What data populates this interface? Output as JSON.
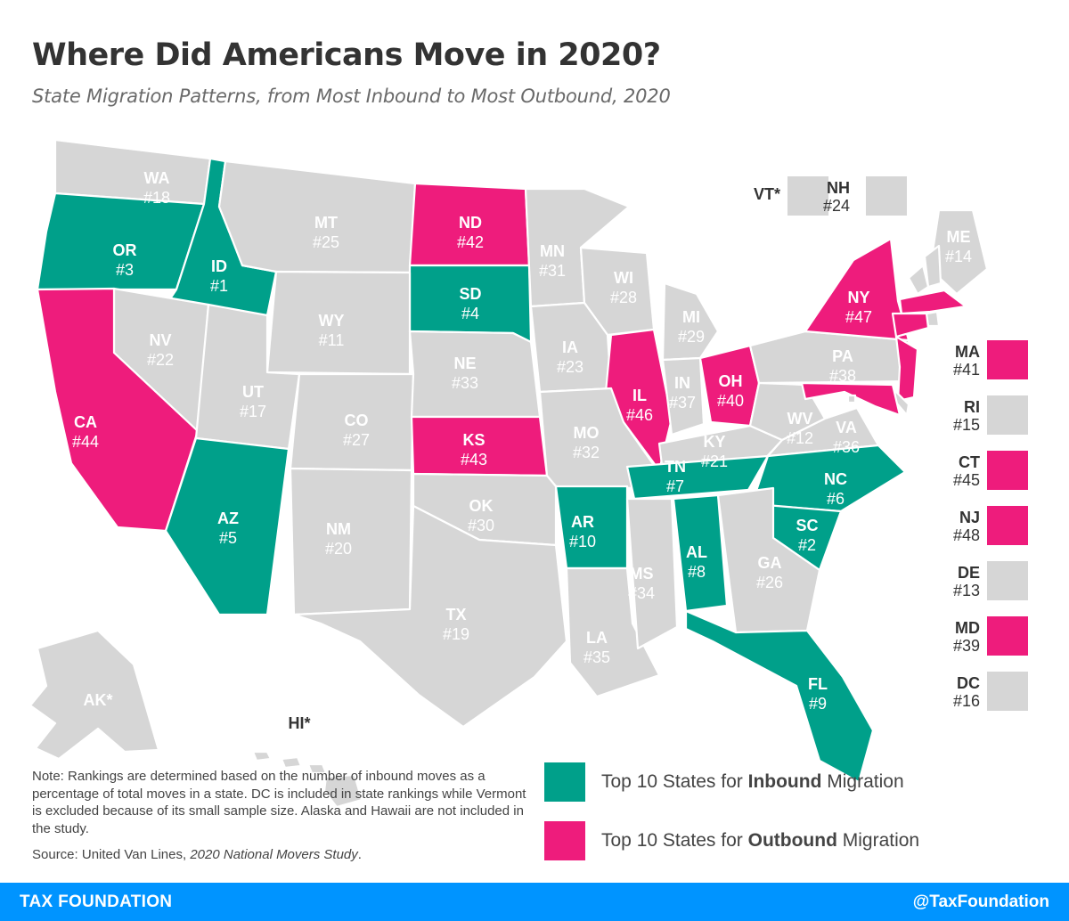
{
  "header": {
    "title": "Where Did Americans Move in 2020?",
    "subtitle": "State Migration Patterns, from Most Inbound to Most Outbound, 2020"
  },
  "colors": {
    "inbound": "#00a08a",
    "outbound": "#ee1c7c",
    "neutral": "#d6d6d6"
  },
  "states": [
    {
      "code": "WA",
      "rank": "#18",
      "cat": "neutral"
    },
    {
      "code": "OR",
      "rank": "#3",
      "cat": "inbound"
    },
    {
      "code": "ID",
      "rank": "#1",
      "cat": "inbound"
    },
    {
      "code": "MT",
      "rank": "#25",
      "cat": "neutral"
    },
    {
      "code": "ND",
      "rank": "#42",
      "cat": "outbound"
    },
    {
      "code": "SD",
      "rank": "#4",
      "cat": "inbound"
    },
    {
      "code": "MN",
      "rank": "#31",
      "cat": "neutral"
    },
    {
      "code": "WI",
      "rank": "#28",
      "cat": "neutral"
    },
    {
      "code": "MI",
      "rank": "#29",
      "cat": "neutral"
    },
    {
      "code": "WY",
      "rank": "#11",
      "cat": "neutral"
    },
    {
      "code": "NV",
      "rank": "#22",
      "cat": "neutral"
    },
    {
      "code": "CA",
      "rank": "#44",
      "cat": "outbound"
    },
    {
      "code": "UT",
      "rank": "#17",
      "cat": "neutral"
    },
    {
      "code": "CO",
      "rank": "#27",
      "cat": "neutral"
    },
    {
      "code": "NE",
      "rank": "#33",
      "cat": "neutral"
    },
    {
      "code": "IA",
      "rank": "#23",
      "cat": "neutral"
    },
    {
      "code": "IL",
      "rank": "#46",
      "cat": "outbound"
    },
    {
      "code": "IN",
      "rank": "#37",
      "cat": "neutral"
    },
    {
      "code": "OH",
      "rank": "#40",
      "cat": "outbound"
    },
    {
      "code": "PA",
      "rank": "#38",
      "cat": "neutral"
    },
    {
      "code": "NY",
      "rank": "#47",
      "cat": "outbound"
    },
    {
      "code": "ME",
      "rank": "#14",
      "cat": "neutral"
    },
    {
      "code": "KS",
      "rank": "#43",
      "cat": "outbound"
    },
    {
      "code": "MO",
      "rank": "#32",
      "cat": "neutral"
    },
    {
      "code": "KY",
      "rank": "#21",
      "cat": "neutral"
    },
    {
      "code": "WV",
      "rank": "#12",
      "cat": "neutral"
    },
    {
      "code": "VA",
      "rank": "#36",
      "cat": "neutral"
    },
    {
      "code": "AZ",
      "rank": "#5",
      "cat": "inbound"
    },
    {
      "code": "NM",
      "rank": "#20",
      "cat": "neutral"
    },
    {
      "code": "OK",
      "rank": "#30",
      "cat": "neutral"
    },
    {
      "code": "AR",
      "rank": "#10",
      "cat": "inbound"
    },
    {
      "code": "TN",
      "rank": "#7",
      "cat": "inbound"
    },
    {
      "code": "NC",
      "rank": "#6",
      "cat": "inbound"
    },
    {
      "code": "SC",
      "rank": "#2",
      "cat": "inbound"
    },
    {
      "code": "TX",
      "rank": "#19",
      "cat": "neutral"
    },
    {
      "code": "LA",
      "rank": "#35",
      "cat": "neutral"
    },
    {
      "code": "MS",
      "rank": "#34",
      "cat": "neutral"
    },
    {
      "code": "AL",
      "rank": "#8",
      "cat": "inbound"
    },
    {
      "code": "GA",
      "rank": "#26",
      "cat": "neutral"
    },
    {
      "code": "FL",
      "rank": "#9",
      "cat": "inbound"
    }
  ],
  "excluded": [
    {
      "code": "AK*"
    },
    {
      "code": "HI*"
    }
  ],
  "northeast_insets": [
    {
      "code": "VT*",
      "rank": "",
      "cat": "neutral"
    },
    {
      "code": "NH",
      "rank": "#24",
      "cat": "neutral"
    }
  ],
  "side_insets": [
    {
      "code": "MA",
      "rank": "#41",
      "cat": "outbound"
    },
    {
      "code": "RI",
      "rank": "#15",
      "cat": "neutral"
    },
    {
      "code": "CT",
      "rank": "#45",
      "cat": "outbound"
    },
    {
      "code": "NJ",
      "rank": "#48",
      "cat": "outbound"
    },
    {
      "code": "DE",
      "rank": "#13",
      "cat": "neutral"
    },
    {
      "code": "MD",
      "rank": "#39",
      "cat": "outbound"
    },
    {
      "code": "DC",
      "rank": "#16",
      "cat": "neutral"
    }
  ],
  "legend": [
    {
      "pre": "Top 10 States for ",
      "bold": "Inbound",
      "post": " Migration",
      "cat": "inbound"
    },
    {
      "pre": "Top 10 States for ",
      "bold": "Outbound",
      "post": " Migration",
      "cat": "outbound"
    }
  ],
  "note": "Note: Rankings are determined based on the number of inbound moves as a percentage of total moves in a state. DC is included in state rankings while Vermont is excluded because of its small sample size. Alaska and Hawaii are not included in the study.",
  "source": {
    "prefix": "Source: United Van Lines, ",
    "title": "2020 National Movers Study",
    "suffix": "."
  },
  "footer": {
    "brand": "TAX FOUNDATION",
    "handle": "@TaxFoundation"
  }
}
